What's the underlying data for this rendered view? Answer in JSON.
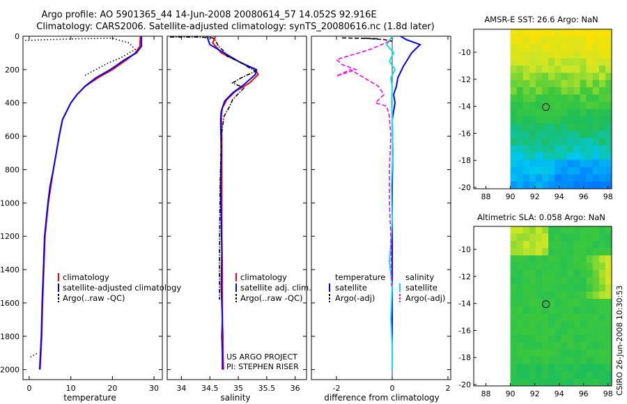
{
  "figure": {
    "title_line1": "Argo profile: AO 5901365_44 14-Jun-2008 20080614_57 14.052S 92.916E",
    "title_line2": "Climatology: CARS2006. Satellite-adjusted climatology: synTS_20080616.nc (1.8d later)",
    "credit": "CSIRO 26-Jun-2008 10:30:53",
    "project_line1": "US ARGO PROJECT",
    "project_line2": "PI: STEPHEN RISER"
  },
  "colors": {
    "climatology": "#ff0000",
    "satellite": "#0000ff",
    "argo": "#000000",
    "satellite_diff_salinity": "#00e5ee",
    "argo_diff_salinity": "#ff00ff"
  },
  "chart_data": [
    {
      "id": "temperature",
      "type": "line",
      "xlabel": "temperature",
      "ylabel": "depth",
      "xlim": [
        -1.5,
        32
      ],
      "ylim": [
        2060,
        0
      ],
      "xticks": [
        0,
        10,
        20,
        30
      ],
      "yticks": [
        0,
        200,
        400,
        600,
        800,
        1000,
        1200,
        1400,
        1600,
        1800,
        2000
      ],
      "series": [
        {
          "name": "climatology",
          "color": "#ff0000",
          "style": "solid",
          "x": [
            26.7,
            26.6,
            25.5,
            23.5,
            20.0,
            16.5,
            13.5,
            11.5,
            10.0,
            9.0,
            8.0,
            7.2,
            6.5,
            5.8,
            5.2,
            4.6,
            4.2,
            3.8,
            3.5,
            3.2,
            3.0,
            2.8,
            2.6
          ],
          "y": [
            0,
            60,
            100,
            140,
            200,
            250,
            300,
            350,
            400,
            450,
            500,
            600,
            700,
            800,
            900,
            1000,
            1100,
            1200,
            1400,
            1600,
            1800,
            1900,
            2000
          ]
        },
        {
          "name": "satellite-adjusted climatology",
          "color": "#0000ff",
          "style": "solid",
          "x": [
            27.0,
            27.0,
            25.8,
            23.0,
            19.5,
            16.0,
            13.4,
            11.5,
            10.0,
            9.0,
            8.0,
            7.2,
            6.5,
            5.8,
            5.0,
            4.5,
            4.1,
            3.7,
            3.4,
            3.1,
            2.9,
            2.7,
            2.5
          ],
          "y": [
            0,
            60,
            100,
            140,
            200,
            250,
            300,
            350,
            400,
            450,
            500,
            600,
            700,
            800,
            900,
            1000,
            1100,
            1200,
            1400,
            1600,
            1800,
            1900,
            2000
          ]
        },
        {
          "name": "Argo(..raw -QC)",
          "color": "#000000",
          "style": "dotted",
          "x": [
            -1.0,
            5.0,
            12.0,
            20.0,
            24.0,
            25.5,
            24.0,
            22.0,
            19.0,
            16.0,
            13.0
          ],
          "y": [
            25,
            20,
            15,
            12,
            40,
            80,
            100,
            130,
            160,
            200,
            240
          ]
        },
        {
          "name": "Argo deep",
          "color": "#000000",
          "style": "dotted",
          "x": [
            0.3,
            1.3,
            2.2
          ],
          "y": [
            1925,
            1910,
            1900
          ]
        }
      ],
      "legend": [
        "climatology",
        "satellite-adjusted climatology",
        "Argo(..raw -QC)"
      ]
    },
    {
      "id": "salinity",
      "type": "line",
      "xlabel": "salinity",
      "xlim": [
        33.75,
        36.2
      ],
      "ylim": [
        2060,
        0
      ],
      "xticks": [
        34,
        34.5,
        35,
        35.5,
        36
      ],
      "series": [
        {
          "name": "climatology",
          "color": "#ff0000",
          "style": "solid",
          "x": [
            34.6,
            34.55,
            34.7,
            35.0,
            35.3,
            35.35,
            35.2,
            34.95,
            34.8,
            34.72,
            34.7,
            34.71,
            34.71,
            34.71,
            34.71,
            34.72,
            34.72,
            34.72,
            34.73,
            34.73,
            34.74
          ],
          "y": [
            0,
            40,
            100,
            150,
            200,
            230,
            280,
            330,
            380,
            430,
            480,
            600,
            800,
            1000,
            1200,
            1400,
            1600,
            1700,
            1800,
            1900,
            2000
          ]
        },
        {
          "name": "satellite adj. clim.",
          "color": "#0000ff",
          "style": "solid",
          "x": [
            34.45,
            34.5,
            34.75,
            35.05,
            35.32,
            35.3,
            35.1,
            34.9,
            34.76,
            34.7,
            34.69,
            34.7,
            34.69,
            34.7,
            34.71,
            34.7,
            34.72,
            34.71,
            34.72,
            34.72
          ],
          "y": [
            0,
            50,
            100,
            160,
            200,
            230,
            290,
            340,
            390,
            450,
            500,
            700,
            900,
            1100,
            1300,
            1500,
            1700,
            1800,
            1900,
            2000
          ]
        },
        {
          "name": "Argo(..raw -QC)",
          "color": "#000000",
          "style": "dashdot",
          "x": [
            33.8,
            34.3,
            34.55,
            34.6,
            34.65,
            34.75,
            34.8,
            35.0,
            35.1,
            35.3,
            35.05,
            34.9,
            35.1,
            34.9,
            34.85,
            34.75,
            34.7,
            34.68,
            34.67,
            34.67
          ],
          "y": [
            5,
            5,
            10,
            25,
            60,
            90,
            120,
            150,
            170,
            210,
            250,
            280,
            310,
            380,
            420,
            480,
            600,
            900,
            1300,
            1580
          ]
        }
      ],
      "legend": [
        "climatology",
        "satellite adj. clim.",
        "Argo(..raw -QC)"
      ]
    },
    {
      "id": "difference",
      "type": "line",
      "xlabel": "difference from climatology",
      "xlim": [
        -2.9,
        2.1
      ],
      "ylim": [
        2060,
        0
      ],
      "xticks": [
        -2,
        0,
        2
      ],
      "series": [
        {
          "name": "satellite (temperature)",
          "color": "#0000ff",
          "style": "solid",
          "x": [
            0.3,
            0.5,
            1.0,
            0.7,
            0.4,
            0.2,
            0.15,
            0.05,
            0.1,
            0.05,
            0.0,
            0.02,
            0.0,
            0.0,
            0.0,
            0.0,
            0.0,
            0.0
          ],
          "y": [
            0,
            20,
            50,
            100,
            180,
            250,
            300,
            350,
            400,
            450,
            500,
            700,
            900,
            1100,
            1400,
            1600,
            1800,
            2000
          ]
        },
        {
          "name": "Argo(-adj) (temperature)",
          "color": "#000000",
          "style": "dashed",
          "x": [
            -1.8,
            -0.5,
            -1.0,
            -0.3,
            0.0
          ],
          "y": [
            10,
            15,
            12,
            20,
            30
          ]
        },
        {
          "name": "satellite (salinity)",
          "color": "#00e5ee",
          "style": "solid",
          "x": [
            0.0,
            -0.2,
            0.05,
            -0.1,
            0.1,
            -0.05,
            0.0,
            -0.02,
            0.0,
            0.02,
            -0.03,
            0.0,
            -0.05,
            -0.1,
            0.0,
            -0.05,
            0.0,
            0.0
          ],
          "y": [
            0,
            50,
            100,
            150,
            200,
            250,
            300,
            400,
            500,
            700,
            900,
            1100,
            1250,
            1350,
            1500,
            1700,
            1850,
            2000
          ]
        },
        {
          "name": "Argo(-adj) (salinity)",
          "color": "#ff00ff",
          "style": "dashed",
          "x": [
            -0.1,
            -0.8,
            -1.2,
            -2.0,
            -1.8,
            -1.3,
            -2.0,
            -1.5,
            -1.0,
            -0.5,
            -0.3,
            -0.6,
            -0.2,
            -0.1,
            -0.05,
            -0.1,
            -0.1,
            -0.05,
            -0.02
          ],
          "y": [
            30,
            80,
            100,
            140,
            170,
            200,
            240,
            200,
            250,
            300,
            350,
            400,
            420,
            480,
            600,
            800,
            1000,
            1200,
            1500
          ]
        }
      ],
      "legend_temperature_title": "temperature",
      "legend_salinity_title": "salinity",
      "legend": [
        "satellite",
        "Argo(-adj)",
        "satellite",
        "Argo(-adj)"
      ]
    },
    {
      "id": "sst_map",
      "type": "heatmap",
      "title": "AMSR-E SST: 26.6 Argo: NaN",
      "xlim": [
        87,
        98.3
      ],
      "ylim": [
        -20.1,
        -8.3
      ],
      "xticks": [
        88,
        90,
        92,
        94,
        96,
        98
      ],
      "yticks": [
        -10,
        -12,
        -14,
        -16,
        -18,
        -20
      ],
      "data_xrange": [
        90,
        98.3
      ],
      "profile_location": {
        "lon": 92.916,
        "lat": -14.052
      }
    },
    {
      "id": "sla_map",
      "type": "heatmap",
      "title": "Altimetric SLA: 0.058 Argo: NaN",
      "xlim": [
        87,
        98.3
      ],
      "ylim": [
        -20.1,
        -8.3
      ],
      "xticks": [
        88,
        90,
        92,
        94,
        96,
        98
      ],
      "yticks": [
        -10,
        -12,
        -14,
        -16,
        -18,
        -20
      ],
      "data_xrange": [
        90,
        98.3
      ],
      "profile_location": {
        "lon": 92.916,
        "lat": -14.052
      }
    }
  ]
}
